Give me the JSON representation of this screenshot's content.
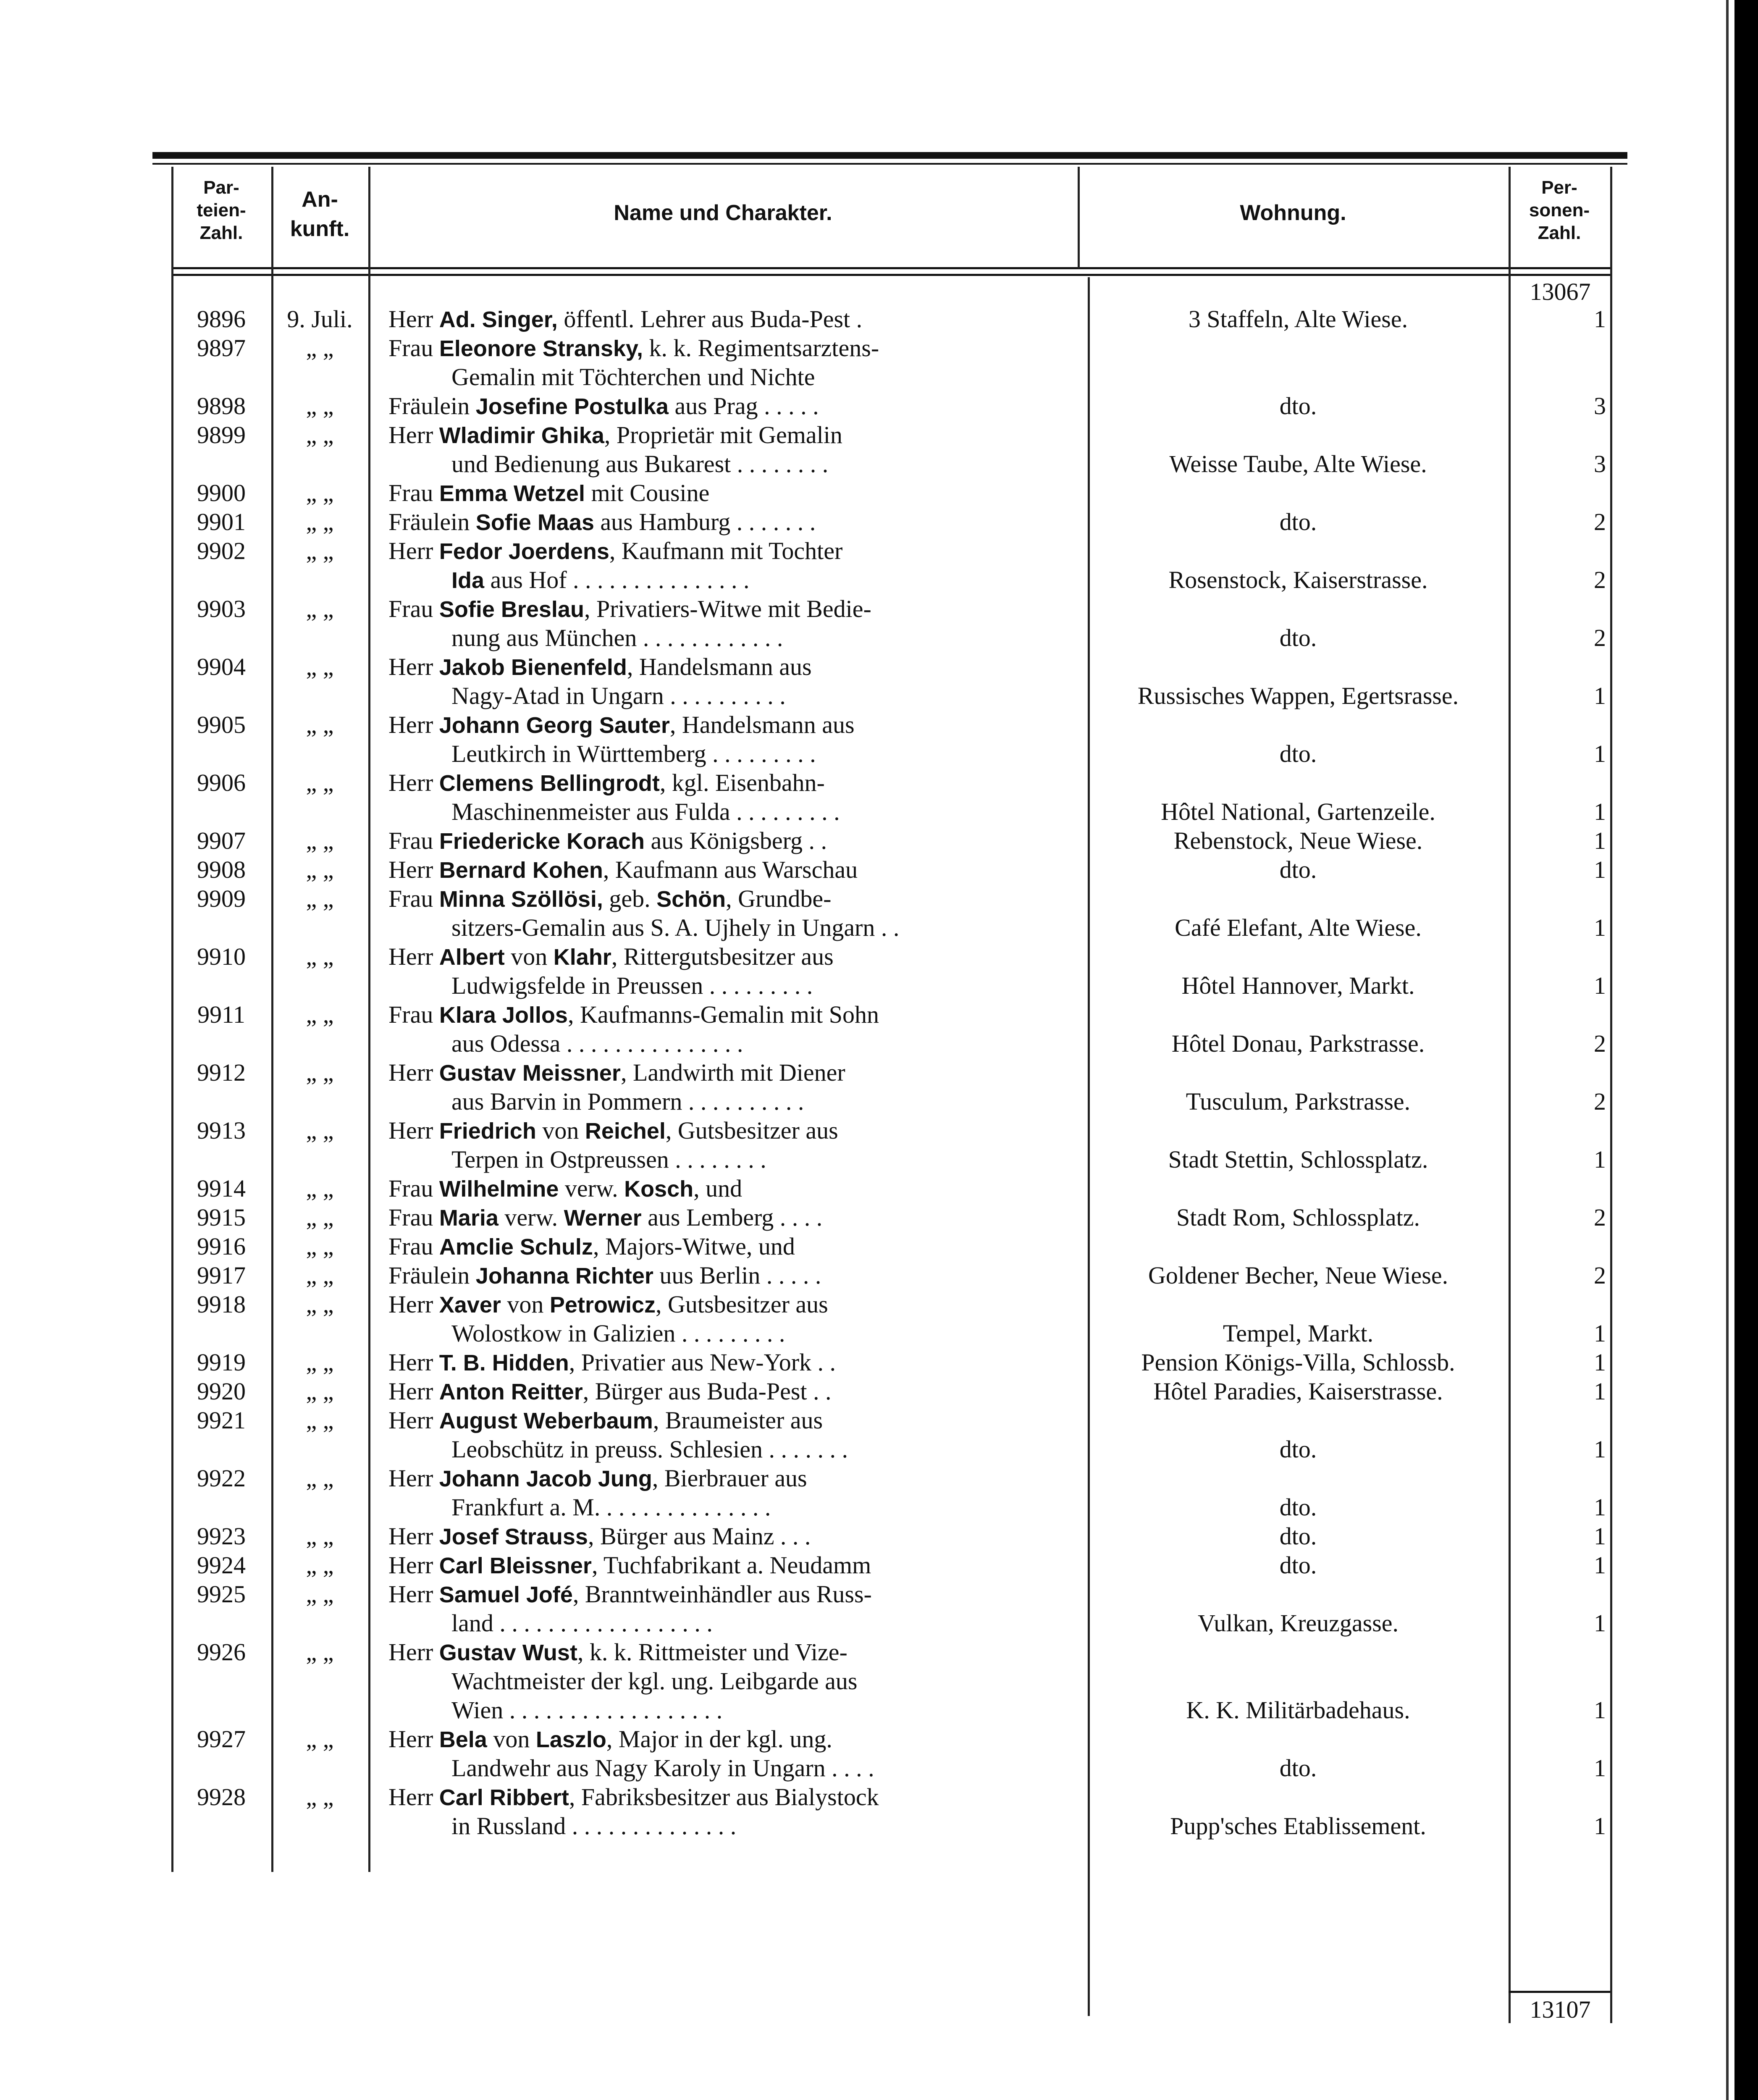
{
  "header": {
    "col_parteien": [
      "Par-",
      "teien-",
      "Zahl."
    ],
    "col_ankunft": [
      "An-",
      "kunft."
    ],
    "col_name": "Name und Charakter.",
    "col_wohnung": "Wohnung.",
    "col_personen": [
      "Per-",
      "sonen-",
      "Zahl."
    ]
  },
  "carried_total": "13067",
  "final_total": "13107",
  "entries": [
    {
      "num": "9896",
      "arr": "9. Juli.",
      "lines": [
        [
          {
            "t": "Herr "
          },
          {
            "t": "Ad. Singer,",
            "b": 1
          },
          {
            "t": " öffentl. Lehrer aus Buda-Pest ."
          }
        ]
      ],
      "woh": "3 Staffeln, Alte Wiese.",
      "pers": "1"
    },
    {
      "num": "9897",
      "arr": "„ „",
      "lines": [
        [
          {
            "t": "Frau "
          },
          {
            "t": "Eleonore Stransky,",
            "b": 1
          },
          {
            "t": " k. k. Regimentsarztens-"
          }
        ],
        [
          {
            "t": "Gemalin mit Töchterchen und Nichte"
          }
        ]
      ]
    },
    {
      "num": "9898",
      "arr": "„ „",
      "lines": [
        [
          {
            "t": "Fräulein "
          },
          {
            "t": "Josefine Postulka",
            "b": 1
          },
          {
            "t": " aus Prag . . . . ."
          }
        ]
      ],
      "woh": "dto.",
      "pers": "3"
    },
    {
      "num": "9899",
      "arr": "„ „",
      "lines": [
        [
          {
            "t": "Herr "
          },
          {
            "t": "Wladimir Ghika",
            "b": 1
          },
          {
            "t": ", Proprietär mit Gemalin"
          }
        ],
        [
          {
            "t": "und Bedienung aus Bukarest . . . . . . . ."
          }
        ]
      ],
      "woh": "Weisse Taube, Alte Wiese.",
      "pers": "3"
    },
    {
      "num": "9900",
      "arr": "„ „",
      "lines": [
        [
          {
            "t": "Frau "
          },
          {
            "t": "Emma Wetzel",
            "b": 1
          },
          {
            "t": " mit Cousine"
          }
        ]
      ]
    },
    {
      "num": "9901",
      "arr": "„ „",
      "lines": [
        [
          {
            "t": "Fräulein "
          },
          {
            "t": "Sofie Maas",
            "b": 1
          },
          {
            "t": " aus Hamburg . . . . . . ."
          }
        ]
      ],
      "woh": "dto.",
      "pers": "2"
    },
    {
      "num": "9902",
      "arr": "„ „",
      "lines": [
        [
          {
            "t": "Herr "
          },
          {
            "t": "Fedor Joerdens",
            "b": 1
          },
          {
            "t": ", Kaufmann mit Tochter"
          }
        ],
        [
          {
            "t": "Ida",
            "b": 1
          },
          {
            "t": " aus Hof . . . . . . . . . . . . . . ."
          }
        ]
      ],
      "woh": "Rosenstock, Kaiserstrasse.",
      "pers": "2"
    },
    {
      "num": "9903",
      "arr": "„ „",
      "lines": [
        [
          {
            "t": "Frau "
          },
          {
            "t": "Sofie Breslau",
            "b": 1
          },
          {
            "t": ", Privatiers-Witwe mit Bedie-"
          }
        ],
        [
          {
            "t": "nung aus München . . . . . . . . . . . ."
          }
        ]
      ],
      "woh": "dto.",
      "pers": "2"
    },
    {
      "num": "9904",
      "arr": "„ „",
      "lines": [
        [
          {
            "t": "Herr "
          },
          {
            "t": "Jakob Bienenfeld",
            "b": 1
          },
          {
            "t": ", Handelsmann aus"
          }
        ],
        [
          {
            "t": "Nagy-Atad in Ungarn . . . . . . . . . ."
          }
        ]
      ],
      "woh": "Russisches Wappen, Egertsrasse.",
      "pers": "1"
    },
    {
      "num": "9905",
      "arr": "„ „",
      "lines": [
        [
          {
            "t": "Herr "
          },
          {
            "t": "Johann Georg Sauter",
            "b": 1
          },
          {
            "t": ", Handelsmann aus"
          }
        ],
        [
          {
            "t": "Leutkirch in Württemberg . . . . . . . . ."
          }
        ]
      ],
      "woh": "dto.",
      "pers": "1"
    },
    {
      "num": "9906",
      "arr": "„ „",
      "lines": [
        [
          {
            "t": "Herr "
          },
          {
            "t": "Clemens Bellingrodt",
            "b": 1
          },
          {
            "t": ", kgl. Eisenbahn-"
          }
        ],
        [
          {
            "t": "Maschinenmeister aus Fulda . . . . . . . . ."
          }
        ]
      ],
      "woh": "Hôtel National, Gartenzeile.",
      "pers": "1"
    },
    {
      "num": "9907",
      "arr": "„ „",
      "lines": [
        [
          {
            "t": "Frau "
          },
          {
            "t": "Friedericke Korach",
            "b": 1
          },
          {
            "t": " aus Königsberg . ."
          }
        ]
      ],
      "woh": "Rebenstock, Neue Wiese.",
      "pers": "1"
    },
    {
      "num": "9908",
      "arr": "„ „",
      "lines": [
        [
          {
            "t": "Herr "
          },
          {
            "t": "Bernard Kohen",
            "b": 1
          },
          {
            "t": ", Kaufmann aus Warschau"
          }
        ]
      ],
      "woh": "dto.",
      "pers": "1"
    },
    {
      "num": "9909",
      "arr": "„ „",
      "lines": [
        [
          {
            "t": "Frau "
          },
          {
            "t": "Minna Szöllösi,",
            "b": 1
          },
          {
            "t": " geb. "
          },
          {
            "t": "Schön",
            "b": 1
          },
          {
            "t": ", Grundbe-"
          }
        ],
        [
          {
            "t": "sitzers-Gemalin aus S. A. Ujhely in Ungarn . ."
          }
        ]
      ],
      "woh": "Café Elefant, Alte Wiese.",
      "pers": "1"
    },
    {
      "num": "9910",
      "arr": "„ „",
      "lines": [
        [
          {
            "t": "Herr "
          },
          {
            "t": "Albert",
            "b": 1
          },
          {
            "t": " von "
          },
          {
            "t": "Klahr",
            "b": 1
          },
          {
            "t": ", Rittergutsbesitzer aus"
          }
        ],
        [
          {
            "t": "Ludwigsfelde in Preussen . . . . . . . . ."
          }
        ]
      ],
      "woh": "Hôtel Hannover, Markt.",
      "pers": "1"
    },
    {
      "num": "9911",
      "arr": "„ „",
      "lines": [
        [
          {
            "t": "Frau "
          },
          {
            "t": "Klara Jollos",
            "b": 1
          },
          {
            "t": ", Kaufmanns-Gemalin mit Sohn"
          }
        ],
        [
          {
            "t": "aus Odessa . . . . . . . . . . . . . . ."
          }
        ]
      ],
      "woh": "Hôtel Donau, Parkstrasse.",
      "pers": "2"
    },
    {
      "num": "9912",
      "arr": "„ „",
      "lines": [
        [
          {
            "t": "Herr "
          },
          {
            "t": "Gustav Meissner",
            "b": 1
          },
          {
            "t": ", Landwirth mit Diener"
          }
        ],
        [
          {
            "t": "aus Barvin in Pommern . . . . . . . . . ."
          }
        ]
      ],
      "woh": "Tusculum, Parkstrasse.",
      "pers": "2"
    },
    {
      "num": "9913",
      "arr": "„ „",
      "lines": [
        [
          {
            "t": "Herr "
          },
          {
            "t": "Friedrich",
            "b": 1
          },
          {
            "t": " von "
          },
          {
            "t": "Reichel",
            "b": 1
          },
          {
            "t": ", Gutsbesitzer aus"
          }
        ],
        [
          {
            "t": "Terpen in Ostpreussen . . . . . . . ."
          }
        ]
      ],
      "woh": "Stadt Stettin, Schlossplatz.",
      "pers": "1"
    },
    {
      "num": "9914",
      "arr": "„ „",
      "lines": [
        [
          {
            "t": "Frau "
          },
          {
            "t": "Wilhelmine",
            "b": 1
          },
          {
            "t": " verw. "
          },
          {
            "t": "Kosch",
            "b": 1
          },
          {
            "t": ", und"
          }
        ]
      ]
    },
    {
      "num": "9915",
      "arr": "„ „",
      "lines": [
        [
          {
            "t": "Frau "
          },
          {
            "t": "Maria",
            "b": 1
          },
          {
            "t": " verw. "
          },
          {
            "t": "Werner",
            "b": 1
          },
          {
            "t": " aus Lemberg . . . ."
          }
        ]
      ],
      "woh": "Stadt Rom, Schlossplatz.",
      "pers": "2"
    },
    {
      "num": "9916",
      "arr": "„ „",
      "lines": [
        [
          {
            "t": "Frau "
          },
          {
            "t": "Amclie Schulz",
            "b": 1
          },
          {
            "t": ", Majors-Witwe, und"
          }
        ]
      ]
    },
    {
      "num": "9917",
      "arr": "„ „",
      "lines": [
        [
          {
            "t": "Fräulein "
          },
          {
            "t": "Johanna Richter",
            "b": 1
          },
          {
            "t": " uus Berlin . . . . ."
          }
        ]
      ],
      "woh": "Goldener Becher, Neue Wiese.",
      "pers": "2"
    },
    {
      "num": "9918",
      "arr": "„ „",
      "lines": [
        [
          {
            "t": "Herr "
          },
          {
            "t": "Xaver",
            "b": 1
          },
          {
            "t": " von "
          },
          {
            "t": "Petrowicz",
            "b": 1
          },
          {
            "t": ", Gutsbesitzer aus"
          }
        ],
        [
          {
            "t": "Wolostkow in Galizien . . . . . . . . ."
          }
        ]
      ],
      "woh": "Tempel, Markt.",
      "pers": "1"
    },
    {
      "num": "9919",
      "arr": "„ „",
      "lines": [
        [
          {
            "t": "Herr "
          },
          {
            "t": "T. B. Hidden",
            "b": 1
          },
          {
            "t": ", Privatier aus New-York . ."
          }
        ]
      ],
      "woh": "Pension Königs-Villa, Schlossb.",
      "pers": "1"
    },
    {
      "num": "9920",
      "arr": "„ „",
      "lines": [
        [
          {
            "t": "Herr "
          },
          {
            "t": "Anton Reitter",
            "b": 1
          },
          {
            "t": ", Bürger aus Buda-Pest . ."
          }
        ]
      ],
      "woh": "Hôtel Paradies, Kaiserstrasse.",
      "pers": "1"
    },
    {
      "num": "9921",
      "arr": "„ „",
      "lines": [
        [
          {
            "t": "Herr "
          },
          {
            "t": "August Weberbaum",
            "b": 1
          },
          {
            "t": ", Braumeister aus"
          }
        ],
        [
          {
            "t": "Leobschütz in preuss. Schlesien . . . . . . ."
          }
        ]
      ],
      "woh": "dto.",
      "pers": "1"
    },
    {
      "num": "9922",
      "arr": "„ „",
      "lines": [
        [
          {
            "t": "Herr "
          },
          {
            "t": "Johann Jacob Jung",
            "b": 1
          },
          {
            "t": ", Bierbrauer aus"
          }
        ],
        [
          {
            "t": "Frankfurt a. M. . . . . . . . . . . . . . ."
          }
        ]
      ],
      "woh": "dto.",
      "pers": "1"
    },
    {
      "num": "9923",
      "arr": "„ „",
      "lines": [
        [
          {
            "t": "Herr "
          },
          {
            "t": "Josef Strauss",
            "b": 1
          },
          {
            "t": ", Bürger aus Mainz . . ."
          }
        ]
      ],
      "woh": "dto.",
      "pers": "1"
    },
    {
      "num": "9924",
      "arr": "„ „",
      "lines": [
        [
          {
            "t": "Herr "
          },
          {
            "t": "Carl Bleissner",
            "b": 1
          },
          {
            "t": ", Tuchfabrikant a. Neudamm"
          }
        ]
      ],
      "woh": "dto.",
      "pers": "1"
    },
    {
      "num": "9925",
      "arr": "„ „",
      "lines": [
        [
          {
            "t": "Herr "
          },
          {
            "t": "Samuel Jofé",
            "b": 1
          },
          {
            "t": ", Branntweinhändler aus Russ-"
          }
        ],
        [
          {
            "t": "land . . . . . . . . . . . . . . . . . ."
          }
        ]
      ],
      "woh": "Vulkan, Kreuzgasse.",
      "pers": "1"
    },
    {
      "num": "9926",
      "arr": "„ „",
      "lines": [
        [
          {
            "t": "Herr "
          },
          {
            "t": "Gustav Wust",
            "b": 1
          },
          {
            "t": ", k. k. Rittmeister und Vize-"
          }
        ],
        [
          {
            "t": "Wachtmeister der kgl. ung. Leibgarde aus"
          }
        ],
        [
          {
            "t": "Wien . . . . . . . . . . . . . . . . . ."
          }
        ]
      ],
      "woh": "K. K. Militärbadehaus.",
      "pers": "1"
    },
    {
      "num": "9927",
      "arr": "„ „",
      "lines": [
        [
          {
            "t": "Herr "
          },
          {
            "t": "Bela",
            "b": 1
          },
          {
            "t": " von "
          },
          {
            "t": "Laszlo",
            "b": 1
          },
          {
            "t": ", Major in der kgl. ung."
          }
        ],
        [
          {
            "t": "Landwehr aus Nagy Karoly in Ungarn . . . ."
          }
        ]
      ],
      "woh": "dto.",
      "pers": "1"
    },
    {
      "num": "9928",
      "arr": "„ „",
      "lines": [
        [
          {
            "t": "Herr "
          },
          {
            "t": "Carl Ribbert",
            "b": 1
          },
          {
            "t": ", Fabriksbesitzer aus Bialystock"
          }
        ],
        [
          {
            "t": "in Russland . . . . . . . . . . . . . ."
          }
        ]
      ],
      "woh": "Pupp'sches Etablissement.",
      "pers": "1"
    }
  ]
}
